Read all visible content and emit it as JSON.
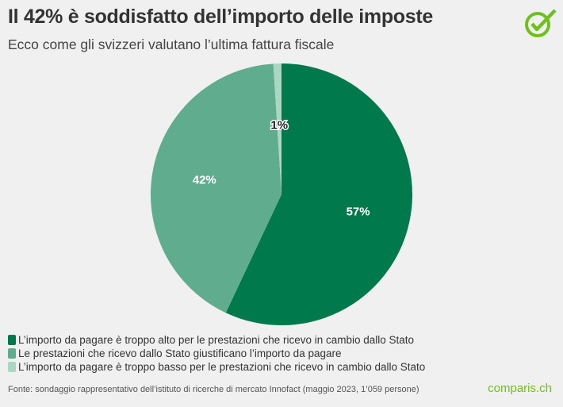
{
  "title": "Il 42% è soddisfatto dell’importo delle imposte",
  "subtitle": "Ecco come gli svizzeri valutano l’ultima fattura fiscale",
  "logo_icon": "check-circle-icon",
  "brand": "comparis.ch",
  "source": "Fonte: sondaggio rappresentativo dell’istituto di ricerche di mercato Innofact (maggio 2023, 1’059 persone)",
  "chart_data": {
    "type": "pie",
    "start": "top, clockwise",
    "legend_position": "bottom-left",
    "slices": [
      {
        "label": "L’importo da pagare è troppo alto per le prestazioni che ricevo in cambio dallo Stato",
        "value": 57,
        "display": "57%",
        "color": "#007a4d"
      },
      {
        "label": "Le prestazioni che ricevo dallo Stato giustificano l’importo da pagare",
        "value": 42,
        "display": "42%",
        "color": "#5fad8e"
      },
      {
        "label": "L’importo da pagare è troppo basso per le prestazioni che ricevo in cambio dallo Stato",
        "value": 1,
        "display": "1%",
        "color": "#a9d7c4"
      }
    ]
  }
}
